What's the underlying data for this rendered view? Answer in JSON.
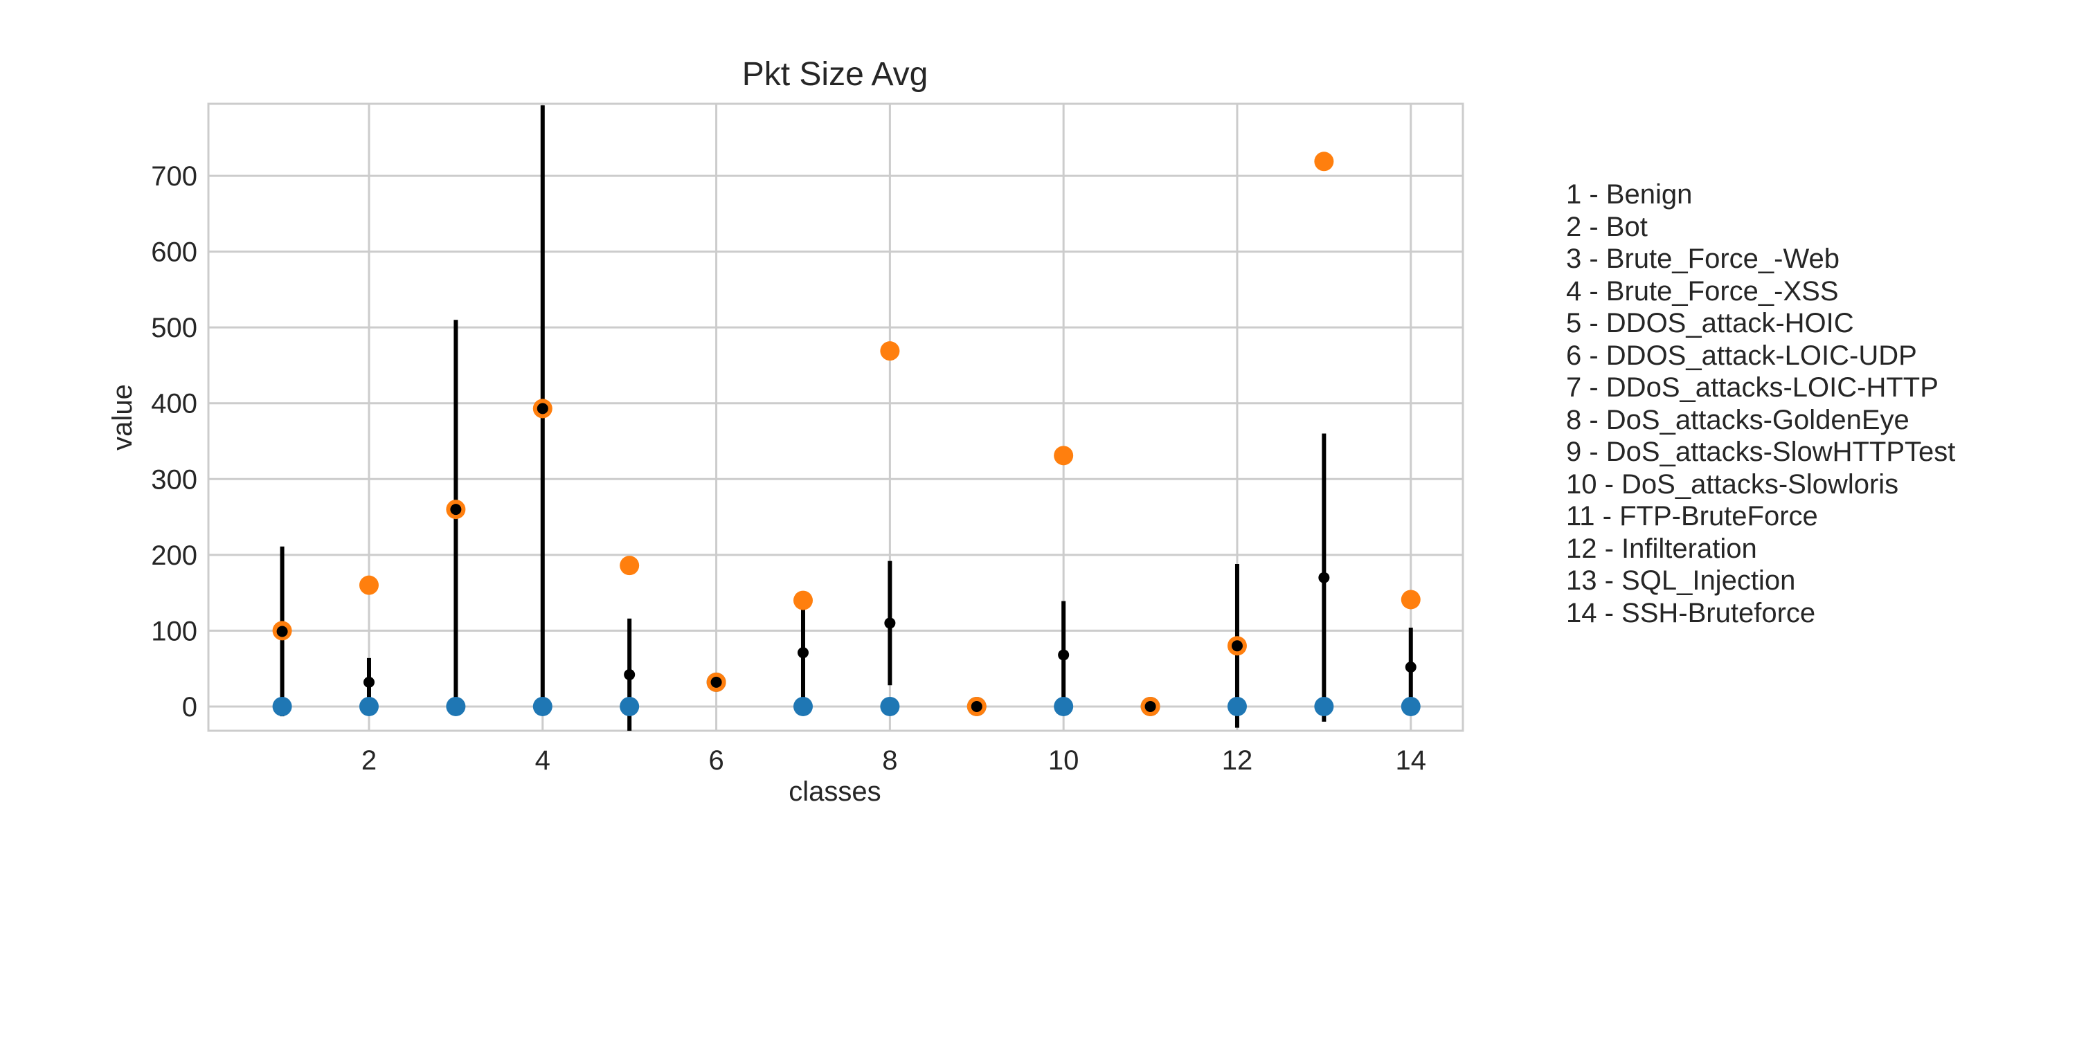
{
  "chart_data": {
    "type": "scatter",
    "title": "Pkt Size Avg",
    "xlabel": "classes",
    "ylabel": "value",
    "xlim": [
      0.15,
      14.6
    ],
    "ylim": [
      -32,
      795
    ],
    "x_ticks": [
      2,
      4,
      6,
      8,
      10,
      12,
      14
    ],
    "y_ticks": [
      0,
      100,
      200,
      300,
      400,
      500,
      600,
      700
    ],
    "grid": true,
    "legend_position": "right",
    "colors": {
      "min": "#1f77b4",
      "max": "#ff7f0e",
      "mean": "#000000",
      "errorbar": "#000000",
      "grid": "#cccccc",
      "axes": "#cccccc"
    },
    "legend": [
      "1 - Benign",
      "2 - Bot",
      "3 - Brute_Force_-Web",
      "4 - Brute_Force_-XSS",
      "5 - DDOS_attack-HOIC",
      "6 - DDOS_attack-LOIC-UDP",
      "7 - DDoS_attacks-LOIC-HTTP",
      "8 - DoS_attacks-GoldenEye",
      "9 - DoS_attacks-SlowHTTPTest",
      "10 - DoS_attacks-Slowloris",
      "11 - FTP-BruteForce",
      "12 - Infilteration",
      "13 - SQL_Injection",
      "14 - SSH-Bruteforce"
    ],
    "x": [
      1,
      2,
      3,
      4,
      5,
      6,
      7,
      8,
      9,
      10,
      11,
      12,
      13,
      14
    ],
    "series": [
      {
        "role": "min",
        "values": [
          0,
          0,
          0,
          0,
          0,
          32,
          0,
          0,
          0,
          0,
          0,
          0,
          0,
          0
        ]
      },
      {
        "role": "max",
        "values": [
          100,
          160,
          260,
          393,
          186,
          32,
          140,
          469,
          0,
          331,
          0,
          80,
          719,
          141
        ]
      },
      {
        "role": "mean",
        "values": [
          99,
          32,
          260,
          393,
          42,
          32,
          71,
          110,
          0,
          68,
          0,
          80,
          170,
          52
        ]
      },
      {
        "role": "std",
        "values": [
          112,
          32,
          250,
          400,
          74,
          0,
          68,
          82,
          0,
          71,
          0,
          108,
          190,
          52
        ]
      }
    ]
  }
}
